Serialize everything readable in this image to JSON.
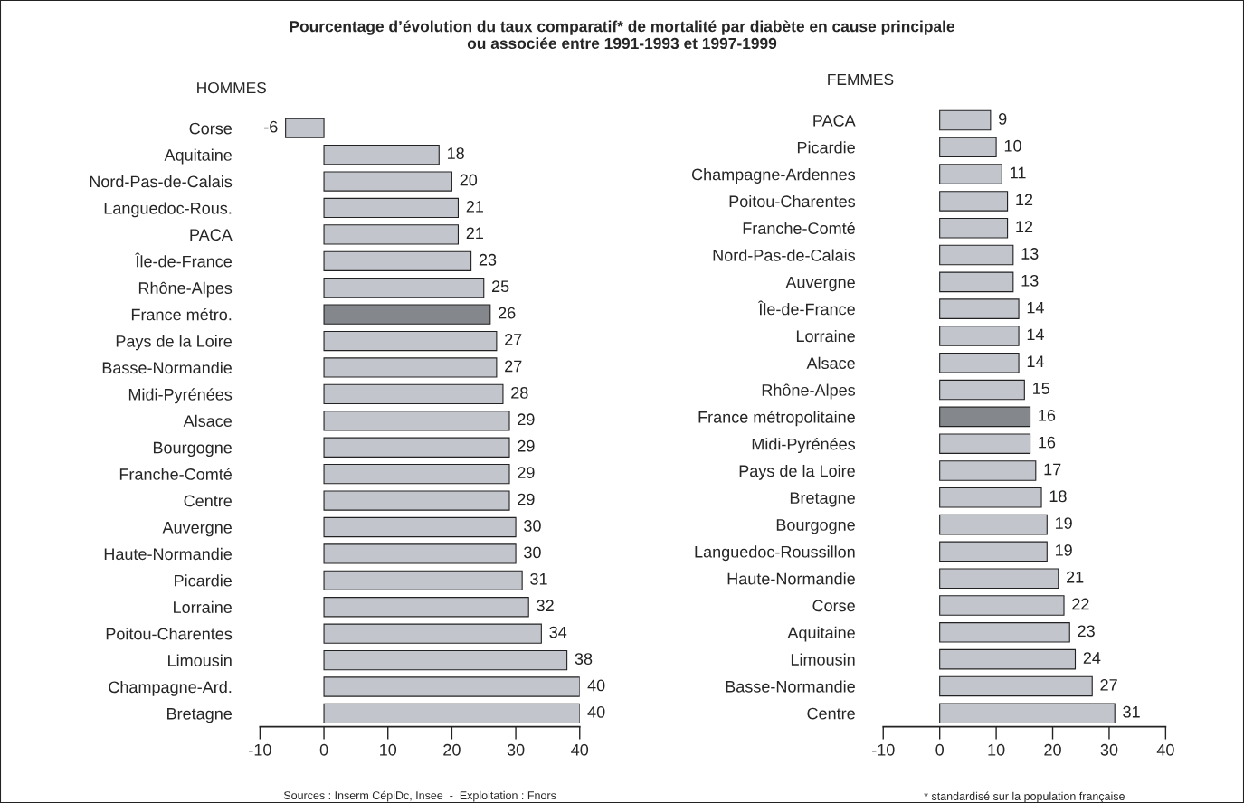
{
  "chart_data": [
    {
      "type": "bar",
      "orientation": "horizontal",
      "title": "Pourcentage d’évolution du taux comparatif* de mortalité par diabète en cause principale\nou associée entre 1991-1993 et 1997-1999",
      "subtitle": "HOMMES",
      "categories": [
        "Corse",
        "Aquitaine",
        "Nord-Pas-de-Calais",
        "Languedoc-Rous.",
        "PACA",
        "Île-de-France",
        "Rhône-Alpes",
        "France métro.",
        "Pays de la Loire",
        "Basse-Normandie",
        "Midi-Pyrénées",
        "Alsace",
        "Bourgogne",
        "Franche-Comté",
        "Centre",
        "Auvergne",
        "Haute-Normandie",
        "Picardie",
        "Lorraine",
        "Poitou-Charentes",
        "Limousin",
        "Champagne-Ard.",
        "Bretagne"
      ],
      "values": [
        -6,
        18,
        20,
        21,
        21,
        23,
        25,
        26,
        27,
        27,
        28,
        29,
        29,
        29,
        29,
        30,
        30,
        31,
        32,
        34,
        38,
        40,
        40
      ],
      "colors": [
        "#c3c5cd",
        "#c3c5cd",
        "#c3c5cd",
        "#c3c5cd",
        "#c3c5cd",
        "#c3c5cd",
        "#c3c5cd",
        "#84878c",
        "#c3c5cd",
        "#c3c5cd",
        "#c3c5cd",
        "#c3c5cd",
        "#c3c5cd",
        "#c3c5cd",
        "#c3c5cd",
        "#c3c5cd",
        "#c3c5cd",
        "#c3c5cd",
        "#c3c5cd",
        "#c3c5cd",
        "#c3c5cd",
        "#c3c5cd",
        "#c3c5cd"
      ],
      "xlim": [
        -10,
        40
      ],
      "xticks": [
        -10,
        0,
        10,
        20,
        30,
        40
      ],
      "data_labels": true,
      "grid": false,
      "legend": false,
      "annotations": [
        "Sources : Inserm CépiDc, Insee  -  Exploitation : Fnors"
      ]
    },
    {
      "type": "bar",
      "orientation": "horizontal",
      "subtitle": "FEMMES",
      "categories": [
        "PACA",
        "Picardie",
        "Champagne-Ardennes",
        "Poitou-Charentes",
        "Franche-Comté",
        "Nord-Pas-de-Calais",
        "Auvergne",
        "Île-de-France",
        "Lorraine",
        "Alsace",
        "Rhône-Alpes",
        "France métropolitaine",
        "Midi-Pyrénées",
        "Pays de la Loire",
        "Bretagne",
        "Bourgogne",
        "Languedoc-Roussillon",
        "Haute-Normandie",
        "Corse",
        "Aquitaine",
        "Limousin",
        "Basse-Normandie",
        "Centre"
      ],
      "values": [
        9,
        10,
        11,
        12,
        12,
        13,
        13,
        14,
        14,
        14,
        15,
        16,
        16,
        17,
        18,
        19,
        19,
        21,
        22,
        23,
        24,
        27,
        31
      ],
      "colors": [
        "#c3c5cd",
        "#c3c5cd",
        "#c3c5cd",
        "#c3c5cd",
        "#c3c5cd",
        "#c3c5cd",
        "#c3c5cd",
        "#c3c5cd",
        "#c3c5cd",
        "#c3c5cd",
        "#c3c5cd",
        "#84878c",
        "#c3c5cd",
        "#c3c5cd",
        "#c3c5cd",
        "#c3c5cd",
        "#c3c5cd",
        "#c3c5cd",
        "#c3c5cd",
        "#c3c5cd",
        "#c3c5cd",
        "#c3c5cd",
        "#c3c5cd"
      ],
      "xlim": [
        -10,
        40
      ],
      "xticks": [
        -10,
        0,
        10,
        20,
        30,
        40
      ],
      "data_labels": true,
      "grid": false,
      "legend": false,
      "annotations": [
        "* standardisé sur la population française"
      ]
    }
  ]
}
